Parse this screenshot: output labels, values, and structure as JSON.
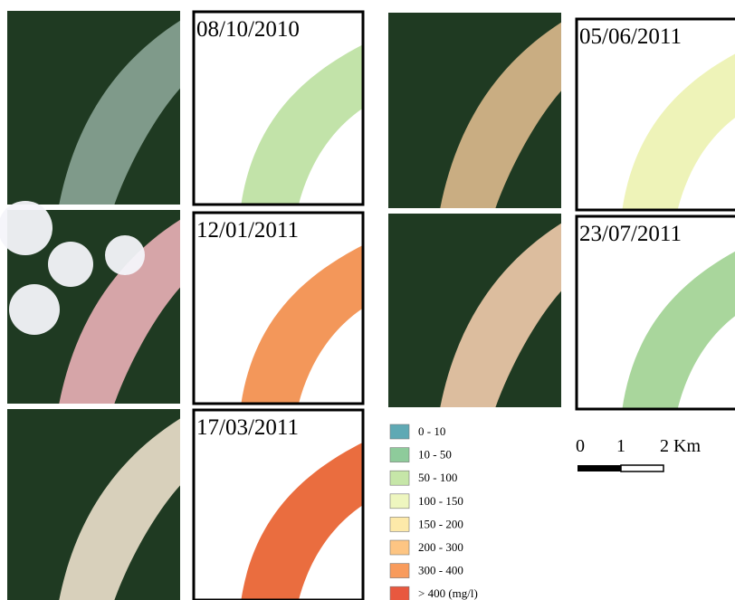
{
  "panels": [
    {
      "date": "08/10/2010",
      "fill": "#c2e3a9"
    },
    {
      "date": "12/01/2011",
      "fill": "#f3975a"
    },
    {
      "date": "17/03/2011",
      "fill": "#ea6d3f"
    },
    {
      "date": "05/06/2011",
      "fill": "#eef3b8"
    },
    {
      "date": "23/07/2011",
      "fill": "#a9d69c"
    }
  ],
  "legend": [
    {
      "label": "0 - 10",
      "color": "#5fa9b4"
    },
    {
      "label": "10 - 50",
      "color": "#8ecb9b"
    },
    {
      "label": "50 - 100",
      "color": "#c6e6a8"
    },
    {
      "label": "100 - 150",
      "color": "#eef6bf"
    },
    {
      "label": "150 - 200",
      "color": "#fde9a9"
    },
    {
      "label": "200 - 300",
      "color": "#fdc583"
    },
    {
      "label": "300 - 400",
      "color": "#f89b5c"
    },
    {
      "label": "> 400 (mg/l)",
      "color": "#e8583f"
    }
  ],
  "scale": {
    "labels": [
      "0",
      "1",
      "2 Km"
    ]
  }
}
